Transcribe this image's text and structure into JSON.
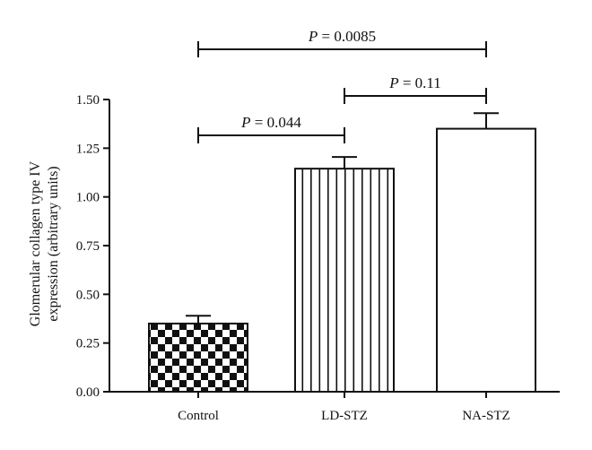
{
  "chart_data": {
    "type": "bar",
    "title": "",
    "xlabel": "",
    "ylabel_lines": [
      "Glomerular collagen type IV",
      "expression (arbitrary units)"
    ],
    "ylim": [
      0,
      1.5
    ],
    "yticks": [
      "0.00",
      "0.25",
      "0.50",
      "0.75",
      "1.00",
      "1.25",
      "1.50"
    ],
    "yticks_values": [
      0,
      0.25,
      0.5,
      0.75,
      1.0,
      1.25,
      1.5
    ],
    "categories": [
      "Control",
      "LD-STZ",
      "NA-STZ"
    ],
    "values": [
      0.35,
      1.145,
      1.35
    ],
    "errors": [
      0.04,
      0.06,
      0.08
    ],
    "patterns": [
      "checkerboard",
      "vertical-stripes",
      "solid-white"
    ],
    "grid": false,
    "comparisons": [
      {
        "from": 0,
        "to": 2,
        "p_prefix": "P",
        "p_value": "= 0.0085",
        "level": 3
      },
      {
        "from": 1,
        "to": 2,
        "p_prefix": "P",
        "p_value": "= 0.11",
        "level": 2
      },
      {
        "from": 0,
        "to": 1,
        "p_prefix": "P",
        "p_value": "= 0.044",
        "level": 1
      }
    ]
  }
}
